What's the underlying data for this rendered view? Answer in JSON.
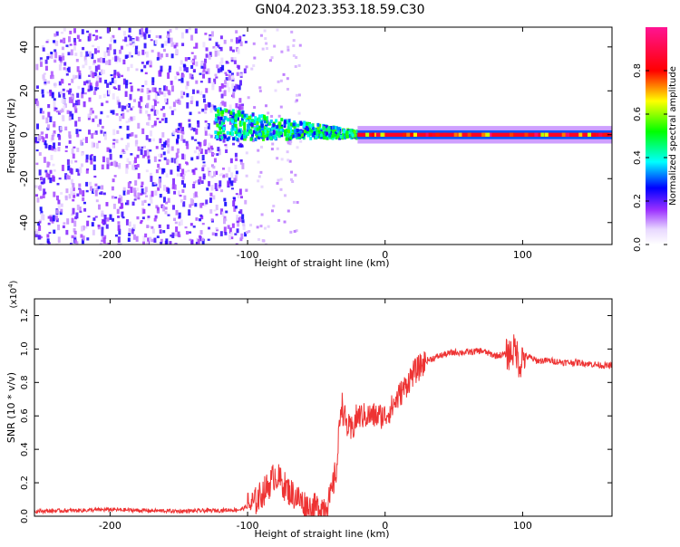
{
  "title": "GN04.2023.353.18.59.C30",
  "chart_data": [
    {
      "type": "heatmap",
      "title": "GN04.2023.353.18.59.C30",
      "xlabel": "Height of straight line (km)",
      "ylabel": "Frequency (Hz)",
      "xlim": [
        -255,
        165
      ],
      "ylim": [
        -50,
        49
      ],
      "xticks": [
        -200,
        -100,
        0,
        100
      ],
      "xtick_labels": [
        "-200",
        "-100",
        "0",
        "100"
      ],
      "yticks": [
        -40,
        -20,
        0,
        20,
        40
      ],
      "ytick_labels": [
        "-40",
        "-20",
        "0",
        "20",
        "40"
      ],
      "colorbar": {
        "label": "Normalized spectral amplitude",
        "range": [
          0.0,
          1.0
        ],
        "ticks": [
          0.0,
          0.2,
          0.4,
          0.6,
          0.8
        ],
        "tick_labels": [
          "0.0",
          "0.2",
          "0.4",
          "0.6",
          "0.8"
        ],
        "colormap": [
          "#ffffff",
          "#9b30ff",
          "#0000ff",
          "#00ffff",
          "#00ff00",
          "#ffff00",
          "#ff0000",
          "#ff1493"
        ]
      },
      "regions": [
        {
          "name": "diffuse noise",
          "x": [
            -255,
            -102
          ],
          "amplitude": 0.15
        },
        {
          "name": "signal band onset",
          "x": [
            -125,
            -20
          ],
          "center_freq_hz": [
            5,
            0
          ],
          "amplitude": 0.45
        },
        {
          "name": "carrier line",
          "x": [
            -20,
            165
          ],
          "center_freq_hz": 0,
          "amplitude": 0.85
        }
      ]
    },
    {
      "type": "line",
      "xlabel": "Height of straight line (km)",
      "ylabel": "SNR (10 * v/v)",
      "y_multiplier_label": "(x10",
      "y_multiplier_exp": "4",
      "y_multiplier_close": ")",
      "xlim": [
        -255,
        165
      ],
      "ylim": [
        0.0,
        1.3
      ],
      "xticks": [
        -200,
        -100,
        0,
        100
      ],
      "xtick_labels": [
        "-200",
        "-100",
        "0",
        "100"
      ],
      "yticks": [
        0.0,
        0.2,
        0.4,
        0.6,
        0.8,
        1.0,
        1.2
      ],
      "ytick_labels": [
        "0.0",
        "0.2",
        "0.4",
        "0.6",
        "0.8",
        "1.0",
        "1.2"
      ],
      "line_color": "#ee3333",
      "series": [
        {
          "x": [
            -255,
            -220,
            -200,
            -180,
            -150,
            -120,
            -105,
            -95,
            -85,
            -80,
            -75,
            -70,
            -65,
            -60,
            -55,
            -50,
            -45,
            -40,
            -35,
            -32,
            -30,
            -28,
            -25,
            -20,
            -15,
            -10,
            -5,
            0,
            5,
            10,
            15,
            20,
            30,
            40,
            50,
            60,
            70,
            80,
            90,
            95,
            98,
            100,
            105,
            110,
            120,
            130,
            140,
            150,
            160,
            165
          ],
          "y": [
            0.03,
            0.035,
            0.04,
            0.035,
            0.03,
            0.035,
            0.04,
            0.08,
            0.18,
            0.25,
            0.2,
            0.15,
            0.12,
            0.08,
            0.05,
            0.05,
            0.06,
            0.1,
            0.3,
            0.7,
            0.6,
            0.55,
            0.5,
            0.6,
            0.6,
            0.6,
            0.6,
            0.6,
            0.65,
            0.72,
            0.78,
            0.85,
            0.93,
            0.96,
            0.98,
            0.98,
            0.99,
            0.96,
            0.97,
            1.0,
            0.9,
            0.96,
            0.95,
            0.93,
            0.93,
            0.92,
            0.92,
            0.91,
            0.9,
            0.9
          ]
        }
      ]
    }
  ]
}
